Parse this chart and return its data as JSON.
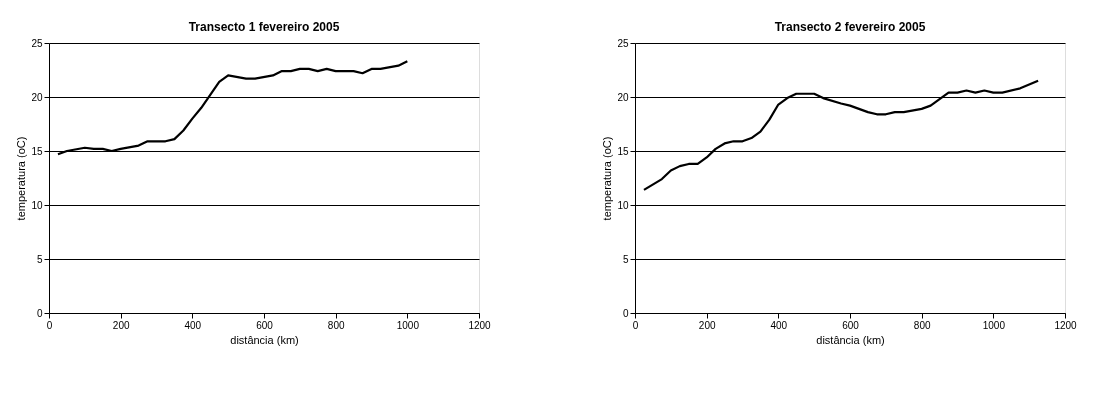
{
  "chart_data": [
    {
      "type": "line",
      "title": "Transecto 1 fevereiro 2005",
      "xlabel": "distância (km)",
      "ylabel": "temperatura (oC)",
      "xlim": [
        0,
        1200
      ],
      "xticks": [
        0,
        200,
        400,
        600,
        800,
        1000,
        1200
      ],
      "ylim": [
        0,
        25
      ],
      "yticks": [
        0,
        5,
        10,
        15,
        20,
        25
      ],
      "grid": "y",
      "marker": "none",
      "line_style": "solid",
      "x": [
        25,
        50,
        100,
        125,
        150,
        175,
        200,
        250,
        275,
        325,
        350,
        375,
        400,
        425,
        450,
        475,
        500,
        550,
        575,
        625,
        650,
        675,
        700,
        725,
        750,
        775,
        800,
        850,
        875,
        900,
        925,
        975,
        1000
      ],
      "series": [
        {
          "color": "#000000",
          "values": [
            14.7,
            15.0,
            15.3,
            15.2,
            15.2,
            15.0,
            15.2,
            15.5,
            15.9,
            15.9,
            16.1,
            16.9,
            18.0,
            19.0,
            20.2,
            21.4,
            22.0,
            21.7,
            21.7,
            22.0,
            22.4,
            22.4,
            22.6,
            22.6,
            22.4,
            22.6,
            22.4,
            22.4,
            22.2,
            22.6,
            22.6,
            22.9,
            23.3
          ]
        }
      ]
    },
    {
      "type": "line",
      "title": "Transecto 2 fevereiro 2005",
      "xlabel": "distância (km)",
      "ylabel": "temperatura (oC)",
      "xlim": [
        0,
        1200
      ],
      "xticks": [
        0,
        200,
        400,
        600,
        800,
        1000,
        1200
      ],
      "ylim": [
        0,
        25
      ],
      "yticks": [
        0,
        5,
        10,
        15,
        20,
        25
      ],
      "grid": "y",
      "marker": "none",
      "line_style": "solid",
      "x": [
        25,
        75,
        100,
        125,
        150,
        175,
        200,
        225,
        250,
        275,
        300,
        325,
        350,
        375,
        400,
        425,
        450,
        500,
        525,
        575,
        600,
        625,
        650,
        675,
        700,
        725,
        750,
        800,
        825,
        850,
        875,
        900,
        925,
        950,
        975,
        1000,
        1025,
        1075,
        1125
      ],
      "series": [
        {
          "color": "#000000",
          "values": [
            11.4,
            12.4,
            13.2,
            13.6,
            13.8,
            13.8,
            14.4,
            15.2,
            15.7,
            15.9,
            15.9,
            16.2,
            16.8,
            17.9,
            19.3,
            19.9,
            20.3,
            20.3,
            19.9,
            19.4,
            19.2,
            18.9,
            18.6,
            18.4,
            18.4,
            18.6,
            18.6,
            18.9,
            19.2,
            19.8,
            20.4,
            20.4,
            20.6,
            20.4,
            20.6,
            20.4,
            20.4,
            20.8,
            21.5
          ]
        }
      ]
    }
  ]
}
